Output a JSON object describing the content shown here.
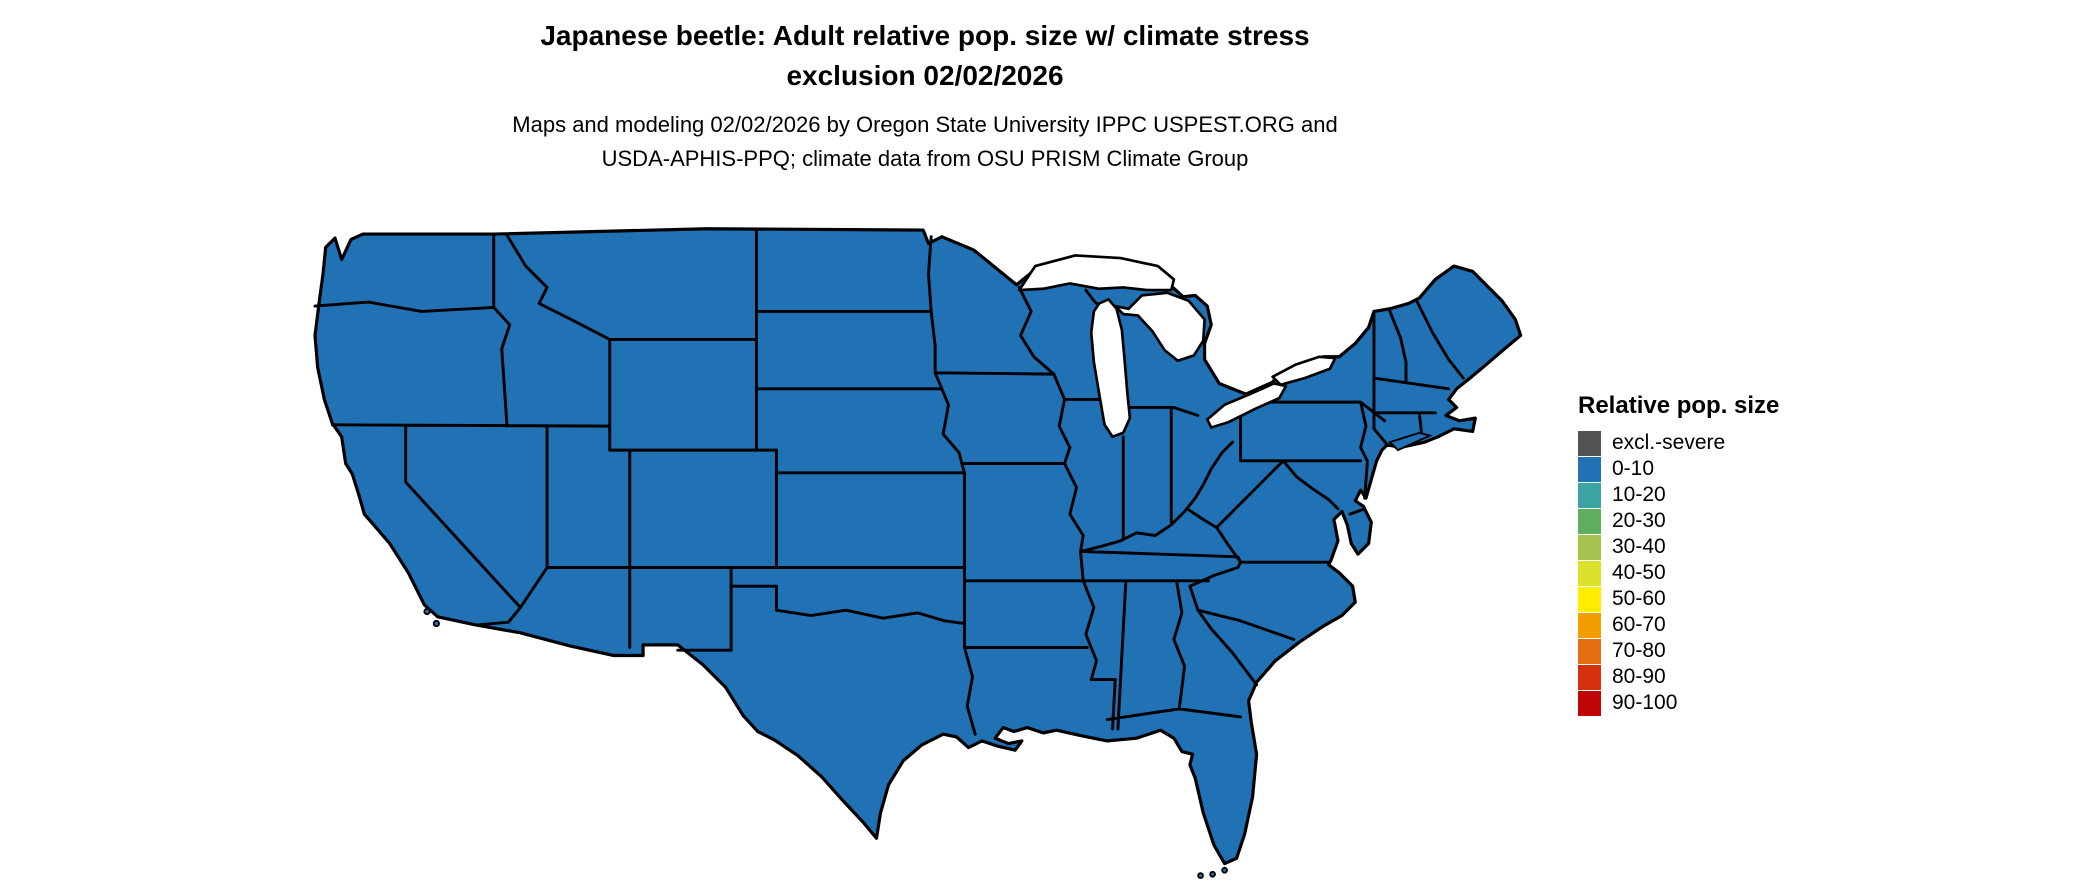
{
  "header": {
    "title_line1": "Japanese beetle: Adult relative pop. size w/ climate stress",
    "title_line2": "exclusion 02/02/2026",
    "subtitle_line1": "Maps and modeling 02/02/2026 by Oregon State University IPPC USPEST.ORG and",
    "subtitle_line2": "USDA-APHIS-PPQ; climate data from OSU PRISM Climate Group"
  },
  "map": {
    "region": "contiguous United States",
    "observed_category_all_states": "0-10",
    "fill_color": "#2171b5",
    "border_color": "#000000",
    "water_color": "#ffffff"
  },
  "legend": {
    "title": "Relative pop. size",
    "items": [
      {
        "label": "excl.-severe",
        "color": "#545454"
      },
      {
        "label": "0-10",
        "color": "#2171b5"
      },
      {
        "label": "10-20",
        "color": "#3ba3a0"
      },
      {
        "label": "20-30",
        "color": "#5fae5f"
      },
      {
        "label": "30-40",
        "color": "#a5c550"
      },
      {
        "label": "40-50",
        "color": "#d9e12b"
      },
      {
        "label": "50-60",
        "color": "#ffed00"
      },
      {
        "label": "60-70",
        "color": "#f29e00"
      },
      {
        "label": "70-80",
        "color": "#e36f12"
      },
      {
        "label": "80-90",
        "color": "#d5310f"
      },
      {
        "label": "90-100",
        "color": "#c00505"
      }
    ]
  }
}
